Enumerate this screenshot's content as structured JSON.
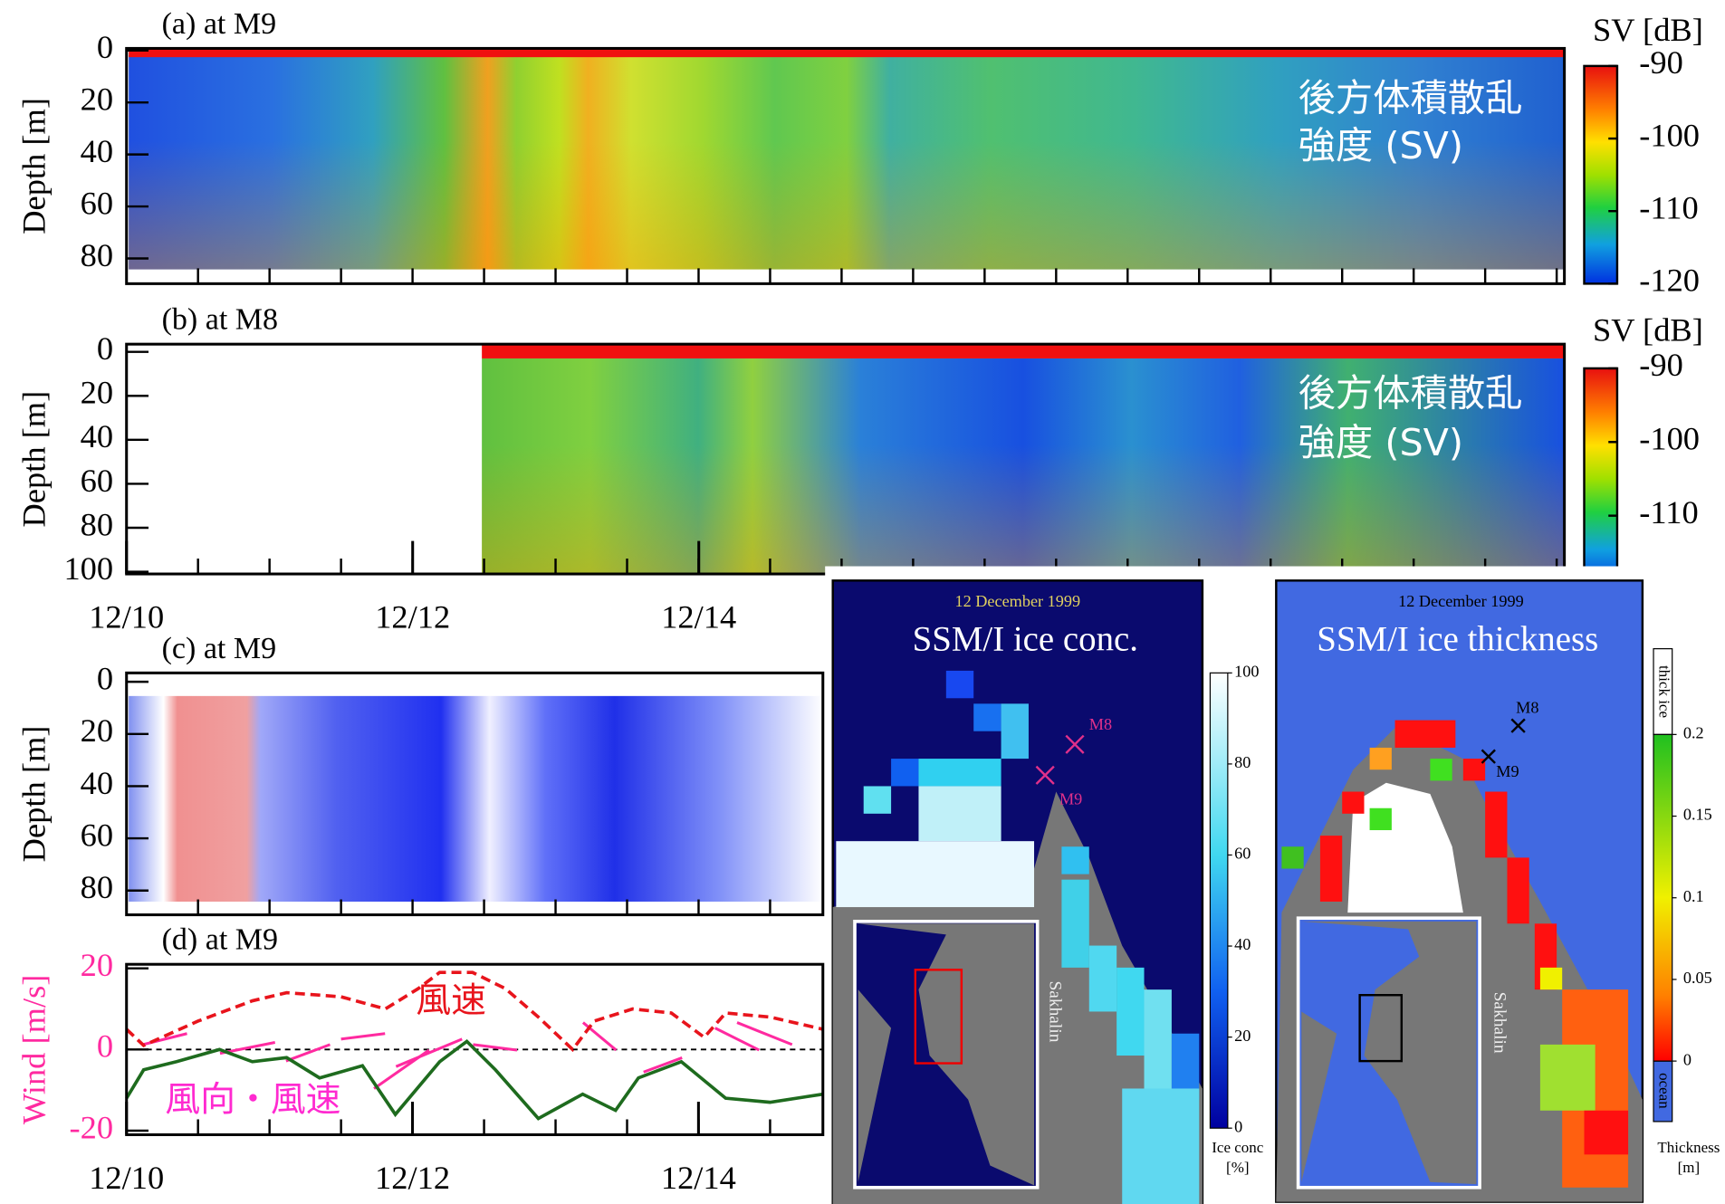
{
  "chart_data": [
    {
      "type": "heatmap",
      "title": "(a) at M9",
      "ylabel": "Depth [m]",
      "xlim": [
        10,
        20.05
      ],
      "ylim": [
        89.7,
        -0.8
      ],
      "yticks": [
        0,
        20,
        40,
        60,
        80
      ],
      "colorbar": {
        "label": "SV [dB]",
        "clim": [
          -120,
          -90
        ],
        "ticks": [
          -90,
          -100,
          -110,
          -120
        ]
      },
      "annotation": [
        "後方体積散乱",
        "強度 (SV)"
      ]
    },
    {
      "type": "heatmap",
      "title": "(b) at M8",
      "ylabel": "Depth [m]",
      "xlim": [
        10,
        20.05
      ],
      "ylim": [
        101,
        -3.5
      ],
      "yticks": [
        0,
        20,
        40,
        60,
        80,
        100
      ],
      "xticks": [
        {
          "value": 10,
          "label": "12/10"
        },
        {
          "value": 12,
          "label": "12/12"
        },
        {
          "value": 14,
          "label": "12/14"
        }
      ],
      "colorbar": {
        "label": "SV [dB]",
        "clim": [
          -120,
          -90
        ],
        "ticks": [
          -90,
          -100,
          -110
        ]
      },
      "annotation": [
        "後方体積散乱",
        "強度 (SV)"
      ]
    },
    {
      "type": "heatmap",
      "title": "(c) at M9",
      "ylabel": "Depth [m]",
      "xlim": [
        10,
        14.87
      ],
      "ylim": [
        89.3,
        -3.4
      ],
      "yticks": [
        0,
        20,
        40,
        60,
        80
      ]
    },
    {
      "type": "line",
      "title": "(d) at M9",
      "ylabel": "Wind [m/s]",
      "annotation": [
        "風向・風速"
      ],
      "xlim": [
        10,
        14.87
      ],
      "ylim": [
        -21,
        21
      ],
      "yticks": [
        -20,
        0,
        20
      ],
      "xticks": [
        {
          "value": 10,
          "label": "12/10"
        },
        {
          "value": 12,
          "label": "12/12"
        },
        {
          "value": 14,
          "label": "12/14"
        }
      ],
      "series": [
        {
          "name": "風速",
          "color": "#e8141c",
          "style": "dashed",
          "x": [
            10.0,
            10.12,
            10.5,
            10.88,
            11.12,
            11.5,
            11.81,
            12.04,
            12.19,
            12.42,
            12.65,
            12.88,
            13.12,
            13.27,
            13.54,
            13.81,
            14.04,
            14.19,
            14.5,
            14.87
          ],
          "values": [
            5,
            1,
            7,
            12,
            14,
            13,
            10,
            15,
            19,
            19,
            15,
            8,
            0,
            7,
            10,
            9,
            3,
            9,
            8,
            5
          ]
        },
        {
          "color": "#1e6b1e",
          "style": "solid",
          "x": [
            10.0,
            10.12,
            10.35,
            10.65,
            10.88,
            11.12,
            11.35,
            11.65,
            11.88,
            12.19,
            12.38,
            12.58,
            12.88,
            13.19,
            13.42,
            13.58,
            13.88,
            14.19,
            14.5,
            14.87
          ],
          "values": [
            -12,
            -5,
            -3,
            0,
            -3,
            -2,
            -7,
            -4,
            -16,
            -3,
            2,
            -5,
            -17,
            -11,
            -15,
            -7,
            -3,
            -12,
            -13,
            -11
          ]
        }
      ]
    }
  ],
  "maps": [
    {
      "date": "12 December 1999",
      "title": "SSM/I ice conc.",
      "place": "Sakhalin",
      "markers": [
        "M8",
        "M9"
      ],
      "colorbar": {
        "clim": [
          0,
          100
        ],
        "ticks": [
          0,
          20,
          40,
          60,
          80,
          100
        ],
        "label": [
          "Ice conc",
          "[%]"
        ]
      }
    },
    {
      "date": "12 December 1999",
      "title": "SSM/I ice thickness",
      "place": "Sakhalin",
      "markers": [
        "M8",
        "M9"
      ],
      "colorbar": {
        "clim": [
          0,
          0.2
        ],
        "ticks": [
          0,
          0.05,
          0.1,
          0.15,
          0.2
        ],
        "top_label": "thick ice",
        "bottom_label": "ocean",
        "label": [
          "Thickness",
          "[m]"
        ]
      }
    }
  ]
}
